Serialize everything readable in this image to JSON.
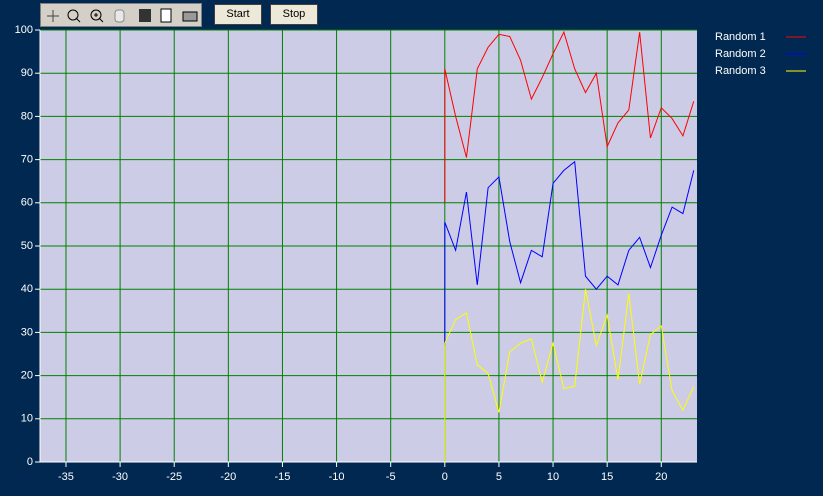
{
  "toolbar": {
    "buttons": [
      "Start",
      "Stop"
    ]
  },
  "chart_data": {
    "type": "line",
    "x": [
      0,
      0,
      1,
      2,
      3,
      4,
      5,
      6,
      7,
      8,
      9,
      10,
      11,
      12,
      13,
      14,
      15,
      16,
      17,
      18,
      19,
      20,
      21,
      22,
      23
    ],
    "series": [
      {
        "name": "Random 1",
        "color": "#ff0000",
        "values": [
          60,
          91,
          80,
          70.5,
          91,
          96,
          99,
          98.5,
          93,
          84,
          89,
          94.5,
          99.5,
          91,
          85.5,
          90,
          73,
          78.5,
          81.5,
          99.5,
          75,
          82,
          79.5,
          75.5,
          83.5
        ]
      },
      {
        "name": "Random 2",
        "color": "#0000ff",
        "values": [
          27,
          55.5,
          49,
          62.5,
          41,
          63.5,
          66,
          51,
          41.5,
          49,
          47.5,
          64.5,
          67.5,
          69.5,
          43,
          40,
          43,
          41,
          49,
          52,
          45,
          52.5,
          59,
          57.5,
          67.5
        ]
      },
      {
        "name": "Random 3",
        "color": "#ffff00",
        "values": [
          0,
          27.5,
          33,
          34.5,
          22.5,
          20.5,
          11.5,
          25.5,
          27.5,
          28.5,
          18.5,
          27.5,
          17,
          17.5,
          40,
          27,
          34,
          19,
          39,
          18,
          29.5,
          31.5,
          16.5,
          12,
          17.5
        ]
      }
    ],
    "xlim": [
      -37.4,
      23.3
    ],
    "ylim": [
      0,
      100
    ],
    "xticks": [
      -35,
      -30,
      -25,
      -20,
      -15,
      -10,
      -5,
      0,
      5,
      10,
      15,
      20
    ],
    "yticks": [
      0,
      10,
      20,
      30,
      40,
      50,
      60,
      70,
      80,
      90,
      100
    ],
    "grid": true,
    "grid_color": "#008000",
    "plot_background": "#ccccE6",
    "legend": "right"
  }
}
